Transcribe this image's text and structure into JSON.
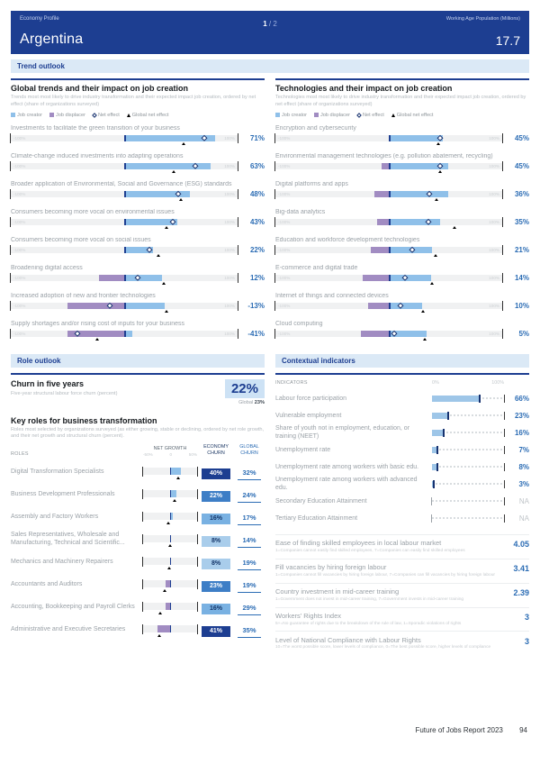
{
  "colors": {
    "navy": "#1d3e91",
    "section_bg": "#dbe9f6",
    "creator": "#8fc0e9",
    "displacer": "#a18cc2",
    "value_blue": "#2b6cb4"
  },
  "header": {
    "eyebrow": "Economy Profile",
    "title": "Argentina",
    "page_current": "1",
    "page_sep": "/",
    "page_total": "2",
    "pop_label": "Working Age Population (Millions)",
    "pop_value": "17.7"
  },
  "sections": {
    "trend": "Trend outlook",
    "role": "Role outlook",
    "contextual": "Contextual indicators"
  },
  "legend": {
    "job_creator": "Job creator",
    "job_displacer": "Job displacer",
    "net_effect": "Net effect",
    "global_net_effect": "Global net effect"
  },
  "trends": {
    "title": "Global trends and their impact on job creation",
    "subtitle": "Trends most most likely to drive industry transformation and their expected impact job creation, ordered by net effect (share of organizations surveyed)",
    "axis_min": "-100%",
    "axis_max": "100%",
    "rows": [
      {
        "label": "Investments to facilitate the green transition of your business",
        "value": "71%",
        "creator": 80,
        "displacer": 0,
        "net": 71,
        "global": 52
      },
      {
        "label": "Climate-change induced investments into adapting operations",
        "value": "63%",
        "creator": 76,
        "displacer": 0,
        "net": 63,
        "global": 44
      },
      {
        "label": "Broader application of Environmental, Social and Governance (ESG) standards",
        "value": "48%",
        "creator": 58,
        "displacer": 0,
        "net": 48,
        "global": 50
      },
      {
        "label": "Consumers becoming more vocal on environmental issues",
        "value": "43%",
        "creator": 47,
        "displacer": 0,
        "net": 43,
        "global": 37
      },
      {
        "label": "Consumers becoming more vocal on social issues",
        "value": "22%",
        "creator": 25,
        "displacer": 0,
        "net": 22,
        "global": 30
      },
      {
        "label": "Broadening digital access",
        "value": "12%",
        "creator": 33,
        "displacer": 22,
        "net": 12,
        "global": 35
      },
      {
        "label": "Increased adoption of new and frontier technologies",
        "value": "-13%",
        "creator": 36,
        "displacer": 50,
        "net": -13,
        "global": 37
      },
      {
        "label": "Supply shortages and/or rising cost of inputs for your business",
        "value": "-41%",
        "creator": 7,
        "displacer": 50,
        "net": -41,
        "global": -24
      }
    ]
  },
  "technologies": {
    "title": "Technologies and their impact on job creation",
    "subtitle": "Technologies most most likely to drive industry transformation and their expected impact job creation, ordered by net effect (share of organizations surveyed)",
    "axis_min": "-100%",
    "axis_max": "100%",
    "rows": [
      {
        "label": "Encryption and cybersecurity",
        "value": "45%",
        "creator": 48,
        "displacer": 0,
        "net": 45,
        "global": 44
      },
      {
        "label": "Environmental management technologies (e.g. pollution abatement, recycling)",
        "value": "45%",
        "creator": 52,
        "displacer": 6,
        "net": 45,
        "global": 45
      },
      {
        "label": "Digital platforms and apps",
        "value": "36%",
        "creator": 52,
        "displacer": 13,
        "net": 36,
        "global": 42
      },
      {
        "label": "Big-data analytics",
        "value": "35%",
        "creator": 45,
        "displacer": 10,
        "net": 35,
        "global": 58
      },
      {
        "label": "Education and workforce development technologies",
        "value": "21%",
        "creator": 38,
        "displacer": 16,
        "net": 21,
        "global": 41
      },
      {
        "label": "E-commerce and digital trade",
        "value": "14%",
        "creator": 37,
        "displacer": 23,
        "net": 14,
        "global": 38
      },
      {
        "label": "Internet of things and connected devices",
        "value": "10%",
        "creator": 29,
        "displacer": 18,
        "net": 10,
        "global": 30
      },
      {
        "label": "Cloud computing",
        "value": "5%",
        "creator": 33,
        "displacer": 25,
        "net": 5,
        "global": 32
      }
    ]
  },
  "churn": {
    "title": "Churn in five years",
    "subtitle": "Five-year structural labour force churn (percent)",
    "value": "22%",
    "global_label": "Global",
    "global_value": "23%"
  },
  "key_roles": {
    "title": "Key roles for business transformation",
    "subtitle": "Roles most selected by organizations surveyed (as either growing, stable or declining, ordered by net role growth, and their net growth and structural churn (percent).",
    "headers": {
      "roles": "ROLES",
      "net_growth": "NET GROWTH",
      "scale_min": "-50%",
      "scale_zero": "0",
      "scale_max": "50%",
      "economy": "ECONOMY CHURN",
      "global": "GLOBAL CHURN"
    },
    "rows": [
      {
        "label": "Digital Transformation Specialists",
        "growth": 20,
        "global_marker": 15,
        "economy_churn": "40%",
        "churn_level": "dark",
        "global_churn": "32%"
      },
      {
        "label": "Business Development Professionals",
        "growth": 12,
        "global_marker": 8,
        "economy_churn": "22%",
        "churn_level": "mid",
        "global_churn": "24%"
      },
      {
        "label": "Assembly and Factory Workers",
        "growth": 5,
        "global_marker": -3,
        "economy_churn": "16%",
        "churn_level": "midlight",
        "global_churn": "17%"
      },
      {
        "label": "Sales Representatives, Wholesale and Manufacturing, Technical and Scientific...",
        "growth": 2,
        "global_marker": 0,
        "economy_churn": "8%",
        "churn_level": "light",
        "global_churn": "14%"
      },
      {
        "label": "Mechanics and Machinery Repairers",
        "growth": 1,
        "global_marker": -2,
        "economy_churn": "8%",
        "churn_level": "light",
        "global_churn": "19%"
      },
      {
        "label": "Accountants and Auditors",
        "growth": -8,
        "global_marker": -10,
        "economy_churn": "23%",
        "churn_level": "mid",
        "global_churn": "19%"
      },
      {
        "label": "Accounting, Bookkeeping and Payroll Clerks",
        "growth": -8,
        "global_marker": -17,
        "economy_churn": "16%",
        "churn_level": "midlight",
        "global_churn": "29%"
      },
      {
        "label": "Administrative and Executive Secretaries",
        "growth": -22,
        "global_marker": -20,
        "economy_churn": "41%",
        "churn_level": "dark",
        "global_churn": "35%"
      }
    ]
  },
  "indicators": {
    "header": "INDICATORS",
    "axis_min": "0%",
    "axis_max": "100%",
    "rows": [
      {
        "label": "Labour force participation",
        "value": "66%",
        "pct": 66,
        "na": false
      },
      {
        "label": "Vulnerable employment",
        "value": "23%",
        "pct": 23,
        "na": false
      },
      {
        "label": "Share of youth not in employment, education, or training (NEET)",
        "value": "16%",
        "pct": 16,
        "na": false
      },
      {
        "label": "Unemployment rate",
        "value": "7%",
        "pct": 7,
        "na": false
      },
      {
        "label": "Unemployment rate among workers with basic edu.",
        "value": "8%",
        "pct": 8,
        "na": false
      },
      {
        "label": "Unemployment rate among workers with advanced edu.",
        "value": "3%",
        "pct": 3,
        "na": false
      },
      {
        "label": "Secondary Education Attainment",
        "value": "NA",
        "pct": 0,
        "na": true
      },
      {
        "label": "Tertiary Education Attainment",
        "value": "NA",
        "pct": 0,
        "na": true
      }
    ],
    "scores": [
      {
        "label": "Ease of finding skilled employees in local labour market",
        "note": "1=Companies cannot easily find skilled employees, 7=Companies can easily find skilled employees",
        "value": "4.05"
      },
      {
        "label": "Fill vacancies by hiring foreign labour",
        "note": "1=Companies cannot fill vacancies by hiring foreign labour, 7=Companies can fill vacancies by hiring foreign labour",
        "value": "3.41"
      },
      {
        "label": "Country investment in mid-career training",
        "note": "1=Government does not invest in mid-career training, 7=Government invests in mid-career training",
        "value": "2.39"
      },
      {
        "label": "Workers' Rights Index",
        "note": "5+=No guarantee of rights due to the breakdown of the rule of law, 1=Sporadic violations of rights",
        "value": "3"
      },
      {
        "label": "Level of National Compliance with Labour Rights",
        "note": "10=The worst possible score, lower levels of compliance, 0=The best possible score, higher levels of compliance",
        "value": "3"
      }
    ]
  },
  "footer": {
    "report": "Future of Jobs Report 2023",
    "page": "94"
  }
}
